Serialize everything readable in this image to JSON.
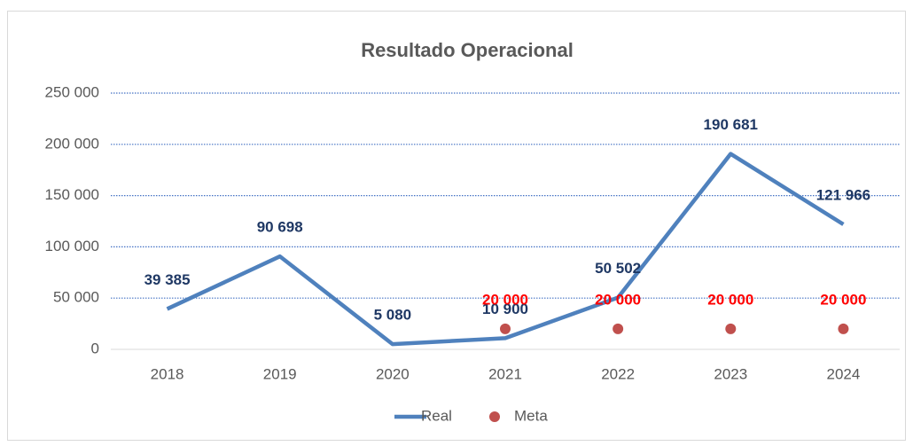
{
  "chart_data": {
    "type": "line",
    "title": "Resultado Operacional",
    "categories": [
      "2018",
      "2019",
      "2020",
      "2021",
      "2022",
      "2023",
      "2024"
    ],
    "series": [
      {
        "name": "Real",
        "color": "#4f81bd",
        "label_color": "#1f3864",
        "values": [
          39385,
          90698,
          5080,
          10900,
          50502,
          190681,
          121966
        ],
        "value_labels": [
          "39 385",
          "90 698",
          "5 080",
          "10 900",
          "50 502",
          "190 681",
          "121 966"
        ]
      },
      {
        "name": "Meta",
        "color": "#c0504d",
        "label_color": "#ff0000",
        "marker_only": true,
        "values": [
          null,
          null,
          null,
          20000,
          20000,
          20000,
          20000
        ],
        "value_labels": [
          null,
          null,
          null,
          "20 000",
          "20 000",
          "20 000",
          "20 000"
        ]
      }
    ],
    "ylim": [
      0,
      250000
    ],
    "yticks": [
      0,
      {
        "value": 50000,
        "label": "50 000"
      },
      {
        "value": 100000,
        "label": "100 000"
      },
      {
        "value": 150000,
        "label": "150 000"
      },
      {
        "value": 200000,
        "label": "200 000"
      },
      {
        "value": 250000,
        "label": "250 000"
      }
    ],
    "grid": true,
    "legend": "bottom"
  }
}
